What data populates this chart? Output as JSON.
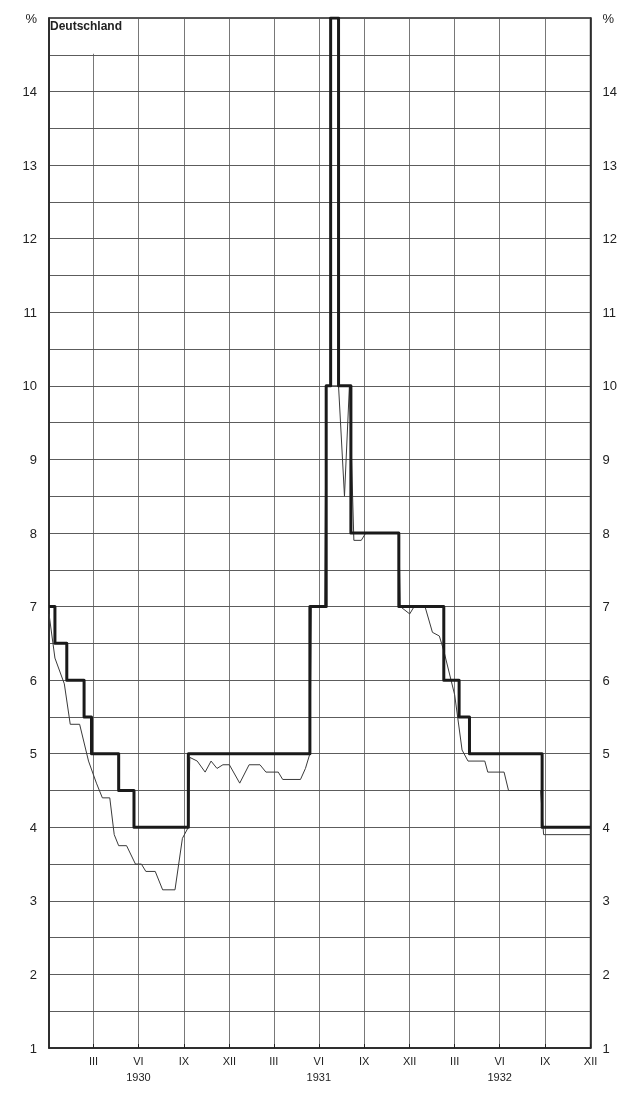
{
  "chart_data": {
    "type": "step",
    "title": "Deutschland",
    "xlim": [
      "1930-01-01",
      "1933-01-01"
    ],
    "xticks": [
      {
        "value": "1930-04-01",
        "label": "III"
      },
      {
        "value": "1930-07-01",
        "label": "VI\n1930"
      },
      {
        "value": "1930-10-01",
        "label": "IX"
      },
      {
        "value": "1931-01-01",
        "label": "XII"
      },
      {
        "value": "1931-04-01",
        "label": "III"
      },
      {
        "value": "1931-07-01",
        "label": "VI\n1931"
      },
      {
        "value": "1931-10-01",
        "label": "IX"
      },
      {
        "value": "1932-01-01",
        "label": "XII"
      },
      {
        "value": "1932-04-01",
        "label": "III"
      },
      {
        "value": "1932-07-01",
        "label": "VI\n1932"
      },
      {
        "value": "1932-10-01",
        "label": "IX"
      },
      {
        "value": "1933-01-01",
        "label": "XII"
      }
    ],
    "ylim": [
      1,
      15
    ],
    "yticks": [
      1,
      {
        "value": 1.5,
        "label": null
      },
      2,
      {
        "value": 2.5,
        "label": null
      },
      3,
      {
        "value": 3.5,
        "label": null
      },
      4,
      {
        "value": 4.5,
        "label": null
      },
      5,
      {
        "value": 5.5,
        "label": null
      },
      6,
      {
        "value": 6.5,
        "label": null
      },
      7,
      {
        "value": 7.5,
        "label": null
      },
      8,
      {
        "value": 8.5,
        "label": null
      },
      9,
      {
        "value": 9.5,
        "label": null
      },
      10,
      {
        "value": 10.5,
        "label": null
      },
      11,
      {
        "value": 11.5,
        "label": null
      },
      12,
      {
        "value": 12.5,
        "label": null
      },
      13,
      {
        "value": 13.5,
        "label": null
      },
      14,
      {
        "value": 14.5,
        "label": null
      },
      {
        "value": 15,
        "label": "%"
      }
    ],
    "y2lim": [
      1,
      15
    ],
    "y2ticks": [
      1,
      {
        "value": 1.5,
        "label": null
      },
      2,
      {
        "value": 2.5,
        "label": null
      },
      3,
      {
        "value": 3.5,
        "label": null
      },
      4,
      {
        "value": 4.5,
        "label": null
      },
      5,
      {
        "value": 5.5,
        "label": null
      },
      6,
      {
        "value": 6.5,
        "label": null
      },
      7,
      {
        "value": 7.5,
        "label": null
      },
      8,
      {
        "value": 8.5,
        "label": null
      },
      9,
      {
        "value": 9.5,
        "label": null
      },
      10,
      {
        "value": 10.5,
        "label": null
      },
      11,
      {
        "value": 11.5,
        "label": null
      },
      12,
      {
        "value": 12.5,
        "label": null
      },
      13,
      {
        "value": 13.5,
        "label": null
      },
      14,
      {
        "value": 14.5,
        "label": null
      },
      {
        "value": 15,
        "label": "%"
      }
    ],
    "grid": true,
    "series": [
      {
        "type": "line",
        "color": "#3a3a3a",
        "x": [
          "1930-01-01",
          "1930-01-13",
          "1930-02-01",
          "1930-02-13",
          "1930-03-04",
          "1930-03-22",
          "1930-04-07",
          "1930-04-19",
          "1930-05-04",
          "1930-05-13",
          "1930-05-22",
          "1930-06-07",
          "1930-06-25",
          "1930-07-07",
          "1930-07-16",
          "1930-08-04",
          "1930-08-19",
          "1930-09-13",
          "1930-09-28",
          "1930-10-10",
          "1930-10-13",
          "1930-10-28",
          "1930-11-13",
          "1930-11-25",
          "1930-12-07",
          "1930-12-19",
          "1931-01-01",
          "1931-01-22",
          "1931-02-10",
          "1931-03-04",
          "1931-03-16",
          "1931-04-10",
          "1931-04-19",
          "1931-05-25",
          "1931-06-04",
          "1931-06-13",
          "1931-06-16",
          "1931-07-13",
          "1931-07-16",
          "1931-08-10",
          "1931-08-22",
          "1931-09-01",
          "1931-09-10",
          "1931-09-25",
          "1931-10-04",
          "1931-12-10",
          "1931-12-13",
          "1932-01-01",
          "1932-01-10",
          "1932-02-01",
          "1932-02-16",
          "1932-03-01",
          "1932-03-10",
          "1932-04-01",
          "1932-04-16",
          "1932-04-28",
          "1932-06-01",
          "1932-06-07",
          "1932-07-10",
          "1932-07-19",
          "1932-09-22",
          "1932-09-28",
          "1933-01-01"
        ],
        "values": [
          6.9,
          6.3,
          5.95,
          5.4,
          5.4,
          4.9,
          4.6,
          4.4,
          4.4,
          3.9,
          3.75,
          3.75,
          3.5,
          3.5,
          3.4,
          3.4,
          3.15,
          3.15,
          3.85,
          4.0,
          4.95,
          4.9,
          4.75,
          4.9,
          4.8,
          4.85,
          4.85,
          4.6,
          4.85,
          4.85,
          4.75,
          4.75,
          4.65,
          4.65,
          4.8,
          5.0,
          7.0,
          7.0,
          10.0,
          10.0,
          8.5,
          10.0,
          7.9,
          7.9,
          8.0,
          8.0,
          7.0,
          6.9,
          7.0,
          7.0,
          6.65,
          6.6,
          6.4,
          5.8,
          5.05,
          4.9,
          4.9,
          4.75,
          4.75,
          4.5,
          4.5,
          3.9,
          3.9
        ]
      },
      {
        "color": "#1a1a1a",
        "x": [
          "1930-01-01",
          "1930-01-13",
          "1930-02-06",
          "1930-03-13",
          "1930-03-28",
          "1930-05-22",
          "1930-06-22",
          "1930-10-10",
          "1931-06-13",
          "1931-07-16",
          "1931-07-25",
          "1931-08-10",
          "1931-09-04",
          "1931-12-10",
          "1932-03-10",
          "1932-04-10",
          "1932-05-01",
          "1932-09-25",
          "1933-01-01"
        ],
        "values": [
          7,
          6.5,
          6,
          5.5,
          5,
          4.5,
          4,
          5,
          7,
          10,
          15,
          10,
          8,
          7,
          6,
          5.5,
          5,
          4,
          4
        ]
      }
    ]
  }
}
